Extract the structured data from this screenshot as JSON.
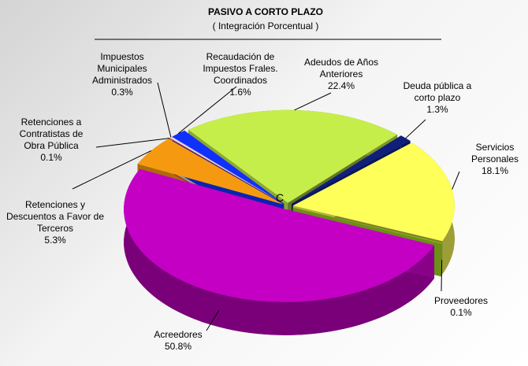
{
  "chart_data": {
    "type": "pie3d",
    "title": "PASIVO A CORTO PLAZO",
    "subtitle": "( Integración Porcentual )",
    "annotation": "C",
    "categories": [
      "Adeudos de Años Anteriores",
      "Deuda pública a corto plazo",
      "Servicios Personales",
      "Proveedores",
      "Acreedores",
      "Retenciones y Descuentos a Favor de Terceros",
      "Retenciones a Contratistas de Obra Pública",
      "Impuestos Municipales Administrados",
      "Recaudación de Impuestos Frales. Coordinados"
    ],
    "values": [
      22.4,
      1.3,
      18.1,
      0.1,
      50.8,
      5.3,
      0.1,
      0.3,
      1.6
    ],
    "value_labels": [
      "22.4%",
      "1.3%",
      "18.1%",
      "0.1%",
      "50.8%",
      "5.3%",
      "0.1%",
      "0.3%",
      "1.6%"
    ],
    "colors": [
      "#c6ee4a",
      "#10207a",
      "#ffff5a",
      "#9acd1e",
      "#c400c4",
      "#f59a10",
      "#ff1010",
      "#d8d8d8",
      "#1030ff"
    ]
  }
}
